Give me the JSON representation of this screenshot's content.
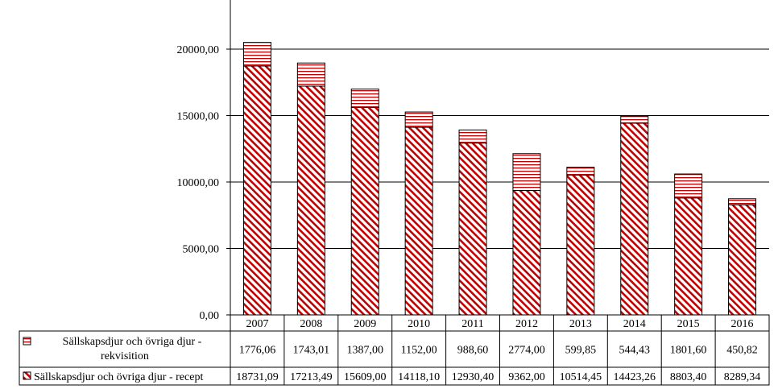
{
  "chart_data": {
    "type": "bar",
    "stacked": true,
    "title": "",
    "xlabel": "",
    "ylabel": "",
    "categories": [
      "2007",
      "2008",
      "2009",
      "2010",
      "2011",
      "2012",
      "2013",
      "2014",
      "2015",
      "2016"
    ],
    "series": [
      {
        "name": "Sällskapsdjur och övriga djur - recept",
        "values": [
          18731.09,
          17213.49,
          15609.0,
          14118.1,
          12930.4,
          9362.0,
          10514.45,
          14423.26,
          8803.4,
          8289.34
        ],
        "labels": [
          "18731,09",
          "17213,49",
          "15609,00",
          "14118,10",
          "12930,40",
          "9362,00",
          "10514,45",
          "14423,26",
          "8803,40",
          "8289,34"
        ],
        "pattern": "diagonal-stripes",
        "color": "#c00000"
      },
      {
        "name": "Sällskapsdjur och övriga djur - rekvisition",
        "values": [
          1776.06,
          1743.01,
          1387.0,
          1152.0,
          988.6,
          2774.0,
          599.85,
          544.43,
          1801.6,
          450.82
        ],
        "labels": [
          "1776,06",
          "1743,01",
          "1387,00",
          "1152,00",
          "988,60",
          "2774,00",
          "599,85",
          "544,43",
          "1801,60",
          "450,82"
        ],
        "pattern": "horizontal-stripes",
        "color": "#c00000"
      }
    ],
    "ylim": [
      0,
      20000
    ],
    "yticks": [
      0,
      5000,
      10000,
      15000,
      20000
    ],
    "ytick_labels": [
      "0,00",
      "5000,00",
      "10000,00",
      "15000,00",
      "20000,00"
    ],
    "grid": true,
    "legend": "data-table"
  }
}
